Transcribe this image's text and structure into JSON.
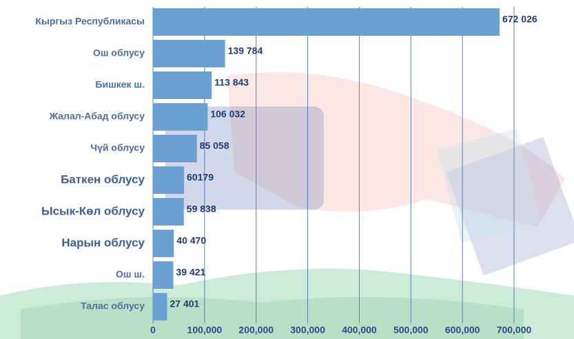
{
  "chart_data": {
    "type": "bar",
    "orientation": "horizontal",
    "categories": [
      "Кыргыз  Республикасы",
      "Ош облусу",
      "Бишкек ш.",
      "Жалал-Абад облусу",
      "Чүй облусу",
      "Баткен облусу",
      "Ысык-Көл облусу",
      "Нарын облусу",
      "Ош ш.",
      "Талас облусу"
    ],
    "values": [
      672026,
      139784,
      113843,
      106032,
      85058,
      60179,
      59838,
      40470,
      39421,
      27401
    ],
    "value_labels": [
      "672 026",
      "139 784",
      "113 843",
      "106 032",
      "85 058",
      "60179",
      "59 838",
      "40 470",
      "39 421",
      "27 401"
    ],
    "color": "#6aa0d2",
    "xlim": [
      0,
      700000
    ],
    "xticks": [
      0,
      {
        "value": 100000,
        "label": "100,000"
      },
      {
        "value": 200000,
        "label": "200,000"
      },
      {
        "value": 300000,
        "label": "300,000"
      },
      {
        "value": 400000,
        "label": "400,000"
      },
      {
        "value": 500000,
        "label": "500,000"
      },
      {
        "value": 600000,
        "label": "600,000"
      },
      {
        "value": 700000,
        "label": "700,000"
      }
    ],
    "grid": true
  }
}
